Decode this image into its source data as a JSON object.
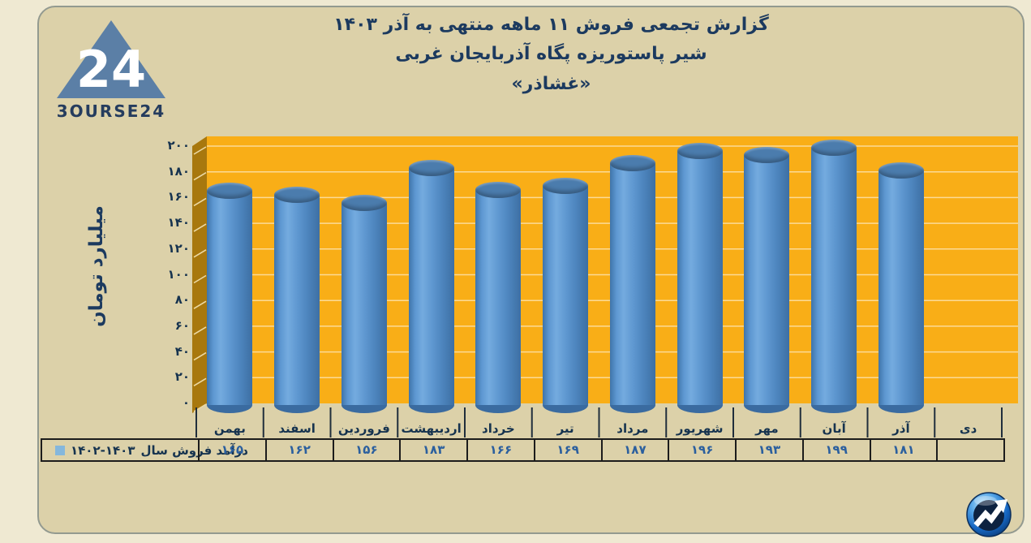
{
  "logo": {
    "brand": "3OURSE24",
    "number": "24",
    "triangle_color": "#5b7fa6"
  },
  "header": {
    "title_line1": "گزارش تجمعی فروش ۱۱ ماهه منتهی به آذر ۱۴۰۳",
    "title_line2": "شیر پاستوریزه پگاه آذربایجان غربی",
    "title_line3": "«غشاذر»"
  },
  "legend": {
    "label_text": "درآمد فروش سال",
    "years": "۱۴۰۲-۱۴۰۳",
    "swatch_color": "#85b7dc"
  },
  "chart_data": {
    "type": "bar",
    "title": "گزارش تجمعی فروش ۱۱ ماهه منتهی به آذر ۱۴۰۳ - شیر پاستوریزه پگاه آذربایجان غربی «غشاذر»",
    "xlabel": "",
    "ylabel": "میلیارد تومان",
    "ylim": [
      0,
      200
    ],
    "ytick_step": 20,
    "grid": true,
    "legend_position": "bottom-left",
    "categories": [
      "بهمن",
      "اسفند",
      "فروردین",
      "اردیبهشت",
      "خرداد",
      "تیر",
      "مرداد",
      "شهریور",
      "مهر",
      "آبان",
      "آذر",
      "دی"
    ],
    "series": [
      {
        "name": "درآمد فروش سال ۱۴۰۲-۱۴۰۳",
        "values": [
          165,
          162,
          156,
          183,
          166,
          169,
          187,
          196,
          193,
          199,
          181,
          null
        ]
      }
    ],
    "value_labels": [
      "۱۶۵",
      "۱۶۲",
      "۱۵۶",
      "۱۸۳",
      "۱۶۶",
      "۱۶۹",
      "۱۸۷",
      "۱۹۶",
      "۱۹۳",
      "۱۹۹",
      "۱۸۱",
      ""
    ],
    "ytick_values": [
      0,
      20,
      40,
      60,
      80,
      100,
      120,
      140,
      160,
      180,
      200
    ],
    "ytick_labels": [
      "۰",
      "۲۰",
      "۴۰",
      "۶۰",
      "۸۰",
      "۱۰۰",
      "۱۲۰",
      "۱۴۰",
      "۱۶۰",
      "۱۸۰",
      "۲۰۰"
    ]
  },
  "colors": {
    "card_bg": "#dcd1a9",
    "card_border": "#939a90",
    "plot_bg": "#f9ae17",
    "plot_wall": "#a8780e",
    "gridline": "rgba(255,255,255,0.55)",
    "bar_main": "#5b94cf",
    "title_navy": "#1c3a5f",
    "value_blue": "#2b5f9e"
  }
}
